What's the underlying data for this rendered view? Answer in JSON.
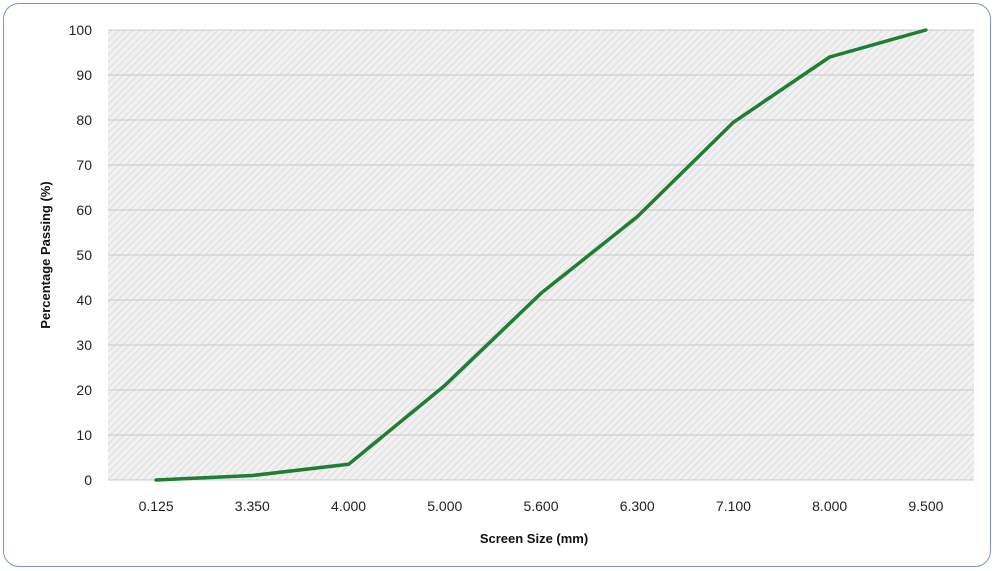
{
  "chart_data": {
    "type": "line",
    "title": "",
    "xlabel": "Screen Size (mm)",
    "ylabel": "Percentage Passing (%)",
    "categories": [
      "0.125",
      "3.350",
      "4.000",
      "5.000",
      "5.600",
      "6.300",
      "7.100",
      "8.000",
      "9.500"
    ],
    "series": [
      {
        "values": [
          0,
          1,
          3.5,
          21,
          41.5,
          58.5,
          79.5,
          94,
          100
        ],
        "color": "#1e7e34"
      }
    ],
    "ylim": [
      0,
      100
    ],
    "yticks": [
      0,
      10,
      20,
      30,
      40,
      50,
      60,
      70,
      80,
      90,
      100
    ],
    "grid": true,
    "legend": "none",
    "plot_background": "hatched-gray"
  }
}
